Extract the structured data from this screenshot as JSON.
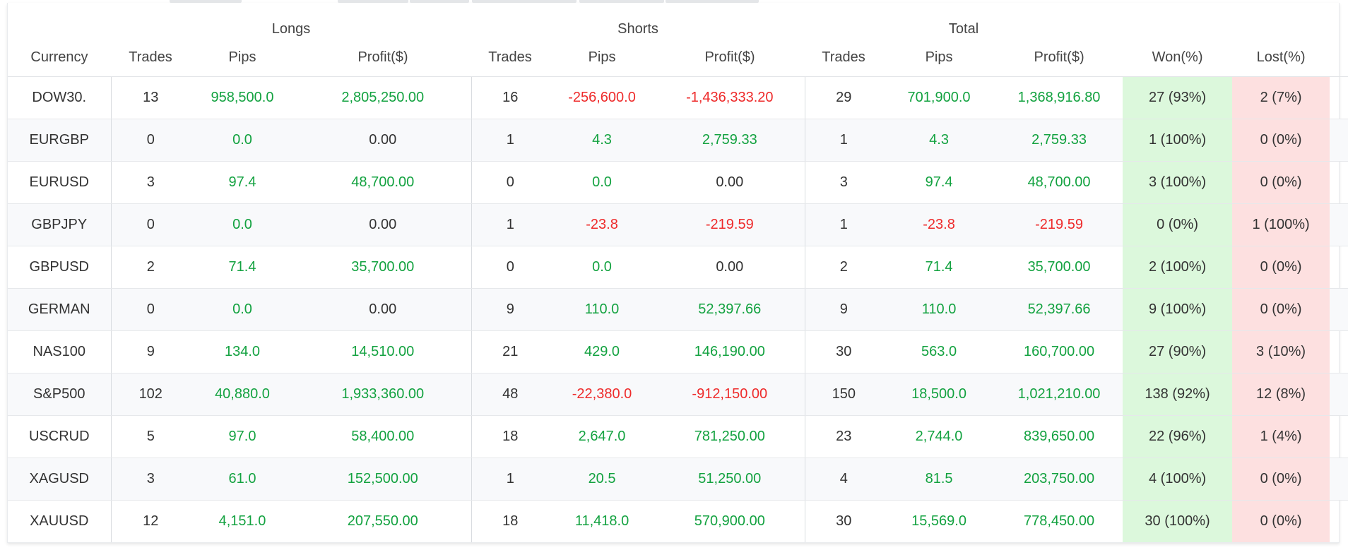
{
  "header": {
    "groups": {
      "longs": "Longs",
      "shorts": "Shorts",
      "total": "Total"
    },
    "columns": {
      "currency": "Currency",
      "long_trades": "Trades",
      "long_pips": "Pips",
      "long_profit": "Profit($)",
      "short_trades": "Trades",
      "short_pips": "Pips",
      "short_profit": "Profit($)",
      "total_trades": "Trades",
      "total_pips": "Pips",
      "total_profit": "Profit($)",
      "won": "Won(%)",
      "lost": "Lost(%)"
    },
    "copy_icon": "copy-icon"
  },
  "colors": {
    "positive": "#13a240",
    "negative": "#ee2b2b",
    "won_bg": "#dcf8dc",
    "lost_bg": "#fde0e0"
  },
  "row_icon": "chart-line-icon",
  "rows": [
    {
      "currency": "DOW30.",
      "long_trades": "13",
      "long_pips": "958,500.0",
      "long_profit": "2,805,250.00",
      "short_trades": "16",
      "short_pips": "-256,600.0",
      "short_profit": "-1,436,333.20",
      "total_trades": "29",
      "total_pips": "701,900.0",
      "total_profit": "1,368,916.80",
      "won": "27 (93%)",
      "lost": "2 (7%)"
    },
    {
      "currency": "EURGBP",
      "long_trades": "0",
      "long_pips": "0.0",
      "long_profit": "0.00",
      "short_trades": "1",
      "short_pips": "4.3",
      "short_profit": "2,759.33",
      "total_trades": "1",
      "total_pips": "4.3",
      "total_profit": "2,759.33",
      "won": "1 (100%)",
      "lost": "0 (0%)"
    },
    {
      "currency": "EURUSD",
      "long_trades": "3",
      "long_pips": "97.4",
      "long_profit": "48,700.00",
      "short_trades": "0",
      "short_pips": "0.0",
      "short_profit": "0.00",
      "total_trades": "3",
      "total_pips": "97.4",
      "total_profit": "48,700.00",
      "won": "3 (100%)",
      "lost": "0 (0%)"
    },
    {
      "currency": "GBPJPY",
      "long_trades": "0",
      "long_pips": "0.0",
      "long_profit": "0.00",
      "short_trades": "1",
      "short_pips": "-23.8",
      "short_profit": "-219.59",
      "total_trades": "1",
      "total_pips": "-23.8",
      "total_profit": "-219.59",
      "won": "0 (0%)",
      "lost": "1 (100%)"
    },
    {
      "currency": "GBPUSD",
      "long_trades": "2",
      "long_pips": "71.4",
      "long_profit": "35,700.00",
      "short_trades": "0",
      "short_pips": "0.0",
      "short_profit": "0.00",
      "total_trades": "2",
      "total_pips": "71.4",
      "total_profit": "35,700.00",
      "won": "2 (100%)",
      "lost": "0 (0%)"
    },
    {
      "currency": "GERMAN",
      "long_trades": "0",
      "long_pips": "0.0",
      "long_profit": "0.00",
      "short_trades": "9",
      "short_pips": "110.0",
      "short_profit": "52,397.66",
      "total_trades": "9",
      "total_pips": "110.0",
      "total_profit": "52,397.66",
      "won": "9 (100%)",
      "lost": "0 (0%)"
    },
    {
      "currency": "NAS100",
      "long_trades": "9",
      "long_pips": "134.0",
      "long_profit": "14,510.00",
      "short_trades": "21",
      "short_pips": "429.0",
      "short_profit": "146,190.00",
      "total_trades": "30",
      "total_pips": "563.0",
      "total_profit": "160,700.00",
      "won": "27 (90%)",
      "lost": "3 (10%)"
    },
    {
      "currency": "S&P500",
      "long_trades": "102",
      "long_pips": "40,880.0",
      "long_profit": "1,933,360.00",
      "short_trades": "48",
      "short_pips": "-22,380.0",
      "short_profit": "-912,150.00",
      "total_trades": "150",
      "total_pips": "18,500.0",
      "total_profit": "1,021,210.00",
      "won": "138 (92%)",
      "lost": "12 (8%)"
    },
    {
      "currency": "USCRUD",
      "long_trades": "5",
      "long_pips": "97.0",
      "long_profit": "58,400.00",
      "short_trades": "18",
      "short_pips": "2,647.0",
      "short_profit": "781,250.00",
      "total_trades": "23",
      "total_pips": "2,744.0",
      "total_profit": "839,650.00",
      "won": "22 (96%)",
      "lost": "1 (4%)"
    },
    {
      "currency": "XAGUSD",
      "long_trades": "3",
      "long_pips": "61.0",
      "long_profit": "152,500.00",
      "short_trades": "1",
      "short_pips": "20.5",
      "short_profit": "51,250.00",
      "total_trades": "4",
      "total_pips": "81.5",
      "total_profit": "203,750.00",
      "won": "4 (100%)",
      "lost": "0 (0%)"
    },
    {
      "currency": "XAUUSD",
      "long_trades": "12",
      "long_pips": "4,151.0",
      "long_profit": "207,550.00",
      "short_trades": "18",
      "short_pips": "11,418.0",
      "short_profit": "570,900.00",
      "total_trades": "30",
      "total_pips": "15,569.0",
      "total_profit": "778,450.00",
      "won": "30 (100%)",
      "lost": "0 (0%)"
    }
  ]
}
